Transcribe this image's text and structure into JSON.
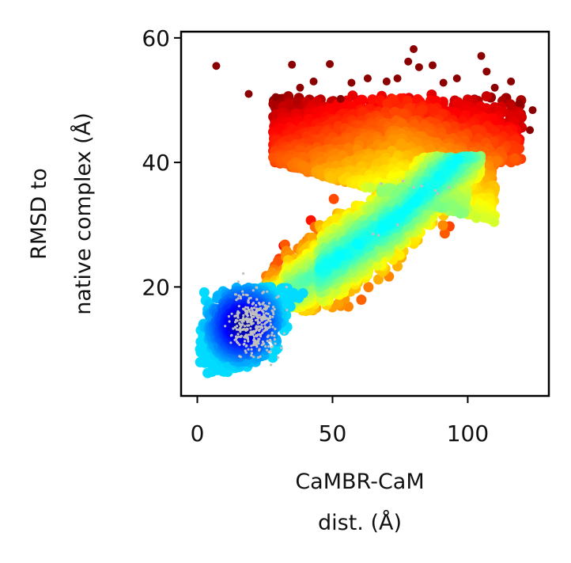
{
  "chart_data": {
    "type": "scatter",
    "title": "",
    "xlabel_lines": [
      "CaMBR-CaM",
      "dist. (Å)"
    ],
    "ylabel_lines": [
      "RMSD to",
      "native complex (Å)"
    ],
    "xlim": [
      -6,
      130
    ],
    "ylim": [
      2.5,
      61
    ],
    "xticks": [
      0,
      50,
      100
    ],
    "yticks": [
      20,
      40,
      60
    ],
    "grid": false,
    "legend": "none",
    "colormap": "jet (density: blue = high, red = low)",
    "colormap_stops": [
      "#00007f",
      "#0000ff",
      "#007fff",
      "#00ffff",
      "#7fff7f",
      "#ffff00",
      "#ff7f00",
      "#ff0000",
      "#7f0000"
    ],
    "overlay_color": "#c0c0c0",
    "series": [
      {
        "kind": "density-scatter",
        "regions": [
          {
            "x": [
              0,
              30
            ],
            "y": [
              6,
              20
            ],
            "density": "high"
          },
          {
            "x": [
              30,
              105
            ],
            "y": [
              18,
              40
            ],
            "density": "medium"
          },
          {
            "x": [
              30,
              115
            ],
            "y": [
              30,
              50
            ],
            "density": "low"
          }
        ],
        "sparse_outliers": [
          [
            7,
            55.5
          ],
          [
            19,
            51
          ],
          [
            29,
            50.5
          ],
          [
            35,
            55.7
          ],
          [
            38,
            52
          ],
          [
            43,
            53
          ],
          [
            49,
            55.8
          ],
          [
            53,
            50.2
          ],
          [
            57,
            52.8
          ],
          [
            63,
            53.5
          ],
          [
            70,
            53
          ],
          [
            74,
            53.5
          ],
          [
            78,
            56.2
          ],
          [
            80,
            58.2
          ],
          [
            82,
            55.3
          ],
          [
            87,
            55.6
          ],
          [
            91,
            52.8
          ],
          [
            96,
            53.5
          ],
          [
            105,
            57.1
          ],
          [
            107,
            54.6
          ],
          [
            110,
            52
          ],
          [
            116,
            53
          ],
          [
            119,
            49.5
          ],
          [
            124,
            48.4
          ],
          [
            123,
            45.2
          ]
        ]
      },
      {
        "kind": "overlay",
        "points": [
          [
            20,
            14
          ],
          [
            22,
            15.5
          ],
          [
            18,
            13
          ],
          [
            25,
            17
          ],
          [
            16,
            12
          ],
          [
            21,
            11
          ],
          [
            24,
            13.5
          ],
          [
            28,
            16
          ],
          [
            19,
            17.5
          ],
          [
            23,
            10
          ],
          [
            26,
            12
          ],
          [
            17,
            15
          ],
          [
            30,
            18.5
          ],
          [
            14,
            13.5
          ],
          [
            20,
            9
          ],
          [
            27,
            14.5
          ],
          [
            22,
            18
          ],
          [
            33,
            20
          ],
          [
            15,
            11
          ],
          [
            24,
            16.2
          ],
          [
            65,
            28.5
          ],
          [
            67,
            28.3
          ],
          [
            74,
            30
          ],
          [
            68,
            36.6
          ],
          [
            76,
            37
          ],
          [
            80,
            36
          ],
          [
            83,
            36.2
          ],
          [
            88,
            35.5
          ],
          [
            89,
            35
          ],
          [
            93,
            36
          ]
        ]
      }
    ]
  }
}
